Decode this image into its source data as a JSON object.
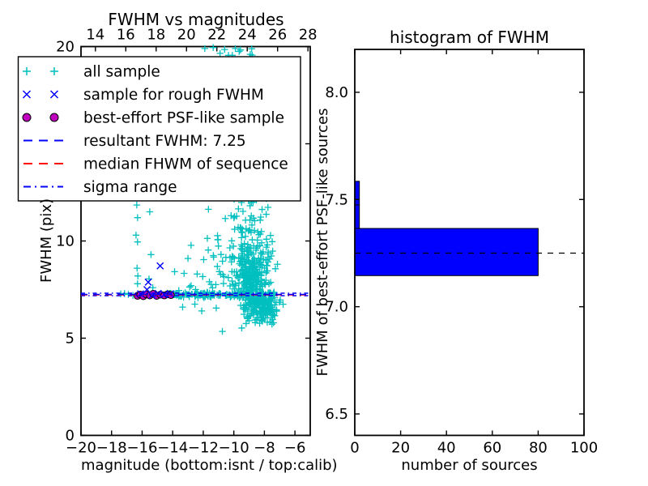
{
  "figure": {
    "background": "#ffffff"
  },
  "chart_data": [
    {
      "type": "scatter",
      "title": "FWHM vs magnitudes",
      "xlabel": "magnitude (bottom:isnt / top:calib)",
      "ylabel": "FWHM (pix)",
      "xlim": [
        -20,
        -5
      ],
      "ylim": [
        0,
        20
      ],
      "x_top_lim": [
        13.05,
        28.15
      ],
      "x_ticks": [
        -20,
        -18,
        -16,
        -14,
        -12,
        -10,
        -8,
        -6
      ],
      "x_top_ticks": [
        14,
        16,
        18,
        20,
        22,
        24,
        26,
        28
      ],
      "y_ticks": [
        0,
        5,
        10,
        15,
        20
      ],
      "grid": false,
      "legend_position": "upper left",
      "seed": 11,
      "series": [
        {
          "name": "all sample",
          "marker": "plus",
          "color": "#00bfbf",
          "clusters": [
            {
              "kind": "gauss",
              "n": 220,
              "cx": -8.85,
              "cy": 7.8,
              "sx": 0.45,
              "sy": 0.8
            },
            {
              "kind": "halfup",
              "n": 150,
              "cx": -8.8,
              "sx": 0.65,
              "base": 8.0,
              "scale": 3.2,
              "ymax": 19.9
            },
            {
              "kind": "halfdown",
              "n": 90,
              "cx": -8.3,
              "sx": 0.6,
              "base": 7.0,
              "scale": 0.55,
              "ymin": 5.7
            },
            {
              "kind": "gauss",
              "n": 50,
              "cx": -7.95,
              "cy": 6.6,
              "sx": 0.4,
              "sy": 0.35
            },
            {
              "kind": "band",
              "n": 170,
              "xmin": -14.6,
              "xmax": -7.3,
              "cy": 7.24,
              "sy": 0.07
            },
            {
              "kind": "halfup",
              "n": 40,
              "cx": -10.9,
              "sx": 1.0,
              "base": 7.5,
              "scale": 1.6,
              "ymax": 15
            },
            {
              "kind": "gauss",
              "n": 20,
              "cx": -10.25,
              "cy": 11.6,
              "sx": 0.7,
              "sy": 1.7
            },
            {
              "kind": "vband",
              "n": 45,
              "xmin": -9.9,
              "xmax": -7.6,
              "ymin": 11.5,
              "ymax": 19.9
            }
          ],
          "points": [
            [
              -16.35,
              11.85
            ],
            [
              -16.3,
              11.2
            ],
            [
              -16.4,
              10.3
            ],
            [
              -16.3,
              9.95
            ],
            [
              -16.33,
              8.6
            ],
            [
              -16.28,
              8.2
            ],
            [
              -16.3,
              7.8
            ],
            [
              -15.5,
              11.5
            ],
            [
              -15.42,
              9.3
            ],
            [
              -15.55,
              8.05
            ],
            [
              -15.3,
              7.6
            ],
            [
              -17.15,
              7.3
            ],
            [
              -16.9,
              7.25
            ],
            [
              -16.6,
              7.2
            ],
            [
              -17.4,
              7.28
            ],
            [
              -11.9,
              19.9
            ],
            [
              -11.35,
              19.95
            ],
            [
              -10.9,
              19.65
            ],
            [
              -10.6,
              19.85
            ],
            [
              -10.35,
              19.55
            ],
            [
              -9.9,
              19.9
            ],
            [
              -9.65,
              19.75
            ],
            [
              -10.1,
              19.55
            ],
            [
              -10.75,
              5.35
            ],
            [
              -12.1,
              6.4
            ],
            [
              -12.55,
              6.75
            ],
            [
              -13.35,
              6.6
            ],
            [
              -13.0,
              9.1
            ],
            [
              -12.4,
              8.3
            ],
            [
              -11.6,
              7.9
            ],
            [
              -12.8,
              7.7
            ],
            [
              -13.6,
              7.45
            ],
            [
              -11.15,
              6.55
            ],
            [
              -9.0,
              5.9
            ],
            [
              -8.6,
              5.8
            ],
            [
              -8.2,
              6.05
            ],
            [
              -7.7,
              7.8
            ],
            [
              -7.4,
              6.2
            ],
            [
              -7.2,
              6.4
            ]
          ]
        },
        {
          "name": "sample for rough FWHM",
          "marker": "x",
          "color": "#0000ff",
          "points": [
            [
              -15.68,
              7.5
            ],
            [
              -15.6,
              7.88
            ],
            [
              -14.82,
              8.72
            ],
            [
              -16.1,
              7.28
            ],
            [
              -15.35,
              7.2
            ],
            [
              -14.95,
              7.3
            ],
            [
              -14.55,
              7.24
            ],
            [
              -14.15,
              7.28
            ]
          ]
        },
        {
          "name": "best-effort PSF-like sample",
          "marker": "circle",
          "color": "#bf00bf",
          "edge_color": "#000000",
          "points": [
            [
              -16.3,
              7.18
            ],
            [
              -16.12,
              7.24
            ],
            [
              -15.92,
              7.16
            ],
            [
              -15.72,
              7.25
            ],
            [
              -15.5,
              7.2
            ],
            [
              -15.28,
              7.28
            ],
            [
              -15.05,
              7.18
            ],
            [
              -14.8,
              7.24
            ],
            [
              -14.55,
              7.2
            ],
            [
              -14.32,
              7.26
            ],
            [
              -14.12,
              7.22
            ]
          ]
        }
      ],
      "hlines": [
        {
          "name": "sigma range upper",
          "y": 7.31,
          "color": "#0000ff",
          "style": "dashdot"
        },
        {
          "name": "sigma range lower",
          "y": 7.19,
          "color": "#0000ff",
          "style": "dashdot"
        },
        {
          "name": "median FHWM of sequence",
          "y": 7.23,
          "color": "#ff0000",
          "style": "dashed"
        },
        {
          "name": "resultant FWHM: 7.25",
          "y": 7.25,
          "color": "#0000ff",
          "style": "dashed"
        }
      ],
      "resultant_fwhm": 7.25,
      "legend": {
        "entries": [
          {
            "label": "all sample",
            "swatch": "plus",
            "color": "#00bfbf"
          },
          {
            "label": "sample for rough FWHM",
            "swatch": "x",
            "color": "#0000ff"
          },
          {
            "label": "best-effort PSF-like sample",
            "swatch": "circle",
            "color": "#bf00bf"
          },
          {
            "label": "resultant FWHM: 7.25",
            "swatch": "dashed",
            "color": "#0000ff"
          },
          {
            "label": "median FHWM of sequence",
            "swatch": "dashed",
            "color": "#ff0000"
          },
          {
            "label": "sigma range",
            "swatch": "dashdot",
            "color": "#0000ff"
          }
        ]
      }
    },
    {
      "type": "bar",
      "orientation": "horizontal",
      "title": "histogram of FWHM",
      "xlabel": "number of sources",
      "ylabel": "FWHM of best-effort PSF-like sources",
      "xlim": [
        0,
        100
      ],
      "ylim": [
        6.4,
        8.2
      ],
      "x_ticks": [
        0,
        20,
        40,
        60,
        80,
        100
      ],
      "y_tick_labels": [
        "6.5",
        "7.0",
        "7.5",
        "8.0"
      ],
      "grid": false,
      "bar_color": "#0000ff",
      "bar_edge_color": "#000000",
      "bins": [
        {
          "fwhm_from": 7.145,
          "fwhm_to": 7.365,
          "count": 80
        },
        {
          "fwhm_from": 7.365,
          "fwhm_to": 7.475,
          "count": 2
        },
        {
          "fwhm_from": 7.475,
          "fwhm_to": 7.585,
          "count": 2
        }
      ],
      "median_line": {
        "y": 7.25,
        "color": "#000000",
        "style": "dashed"
      }
    }
  ]
}
